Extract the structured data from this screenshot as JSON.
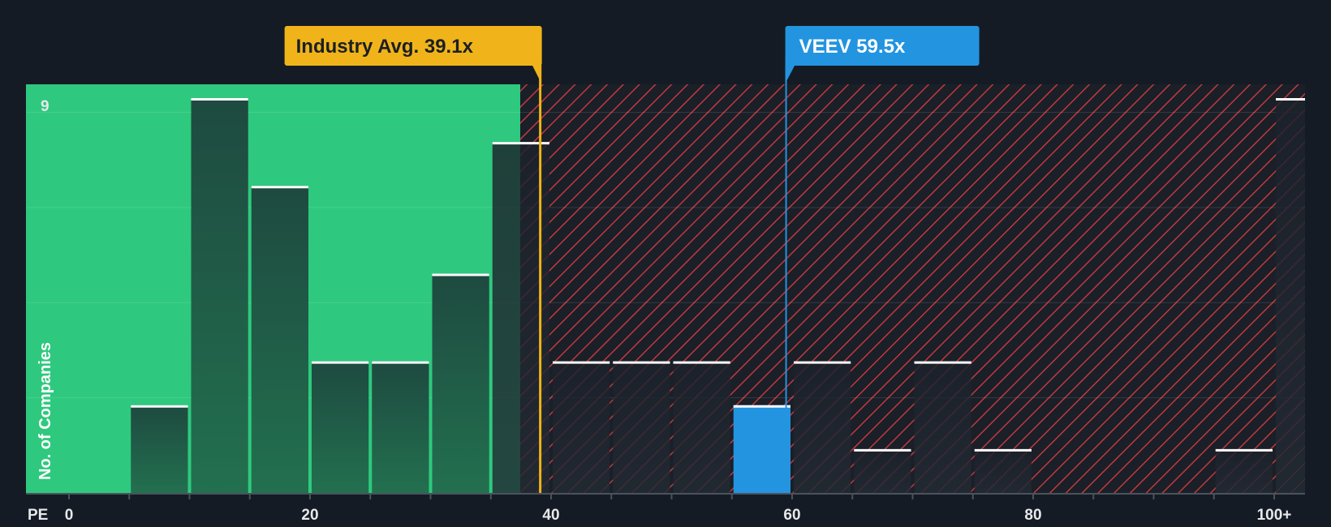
{
  "chart_data": {
    "type": "bar",
    "x_axis_prefix": "PE",
    "x_tick_labels": [
      "0",
      "20",
      "40",
      "60",
      "80",
      "100+"
    ],
    "x_ticks": [
      0,
      20,
      40,
      60,
      80,
      100
    ],
    "ylabel": "No. of Companies",
    "y_max_label": "9",
    "ylim": [
      0,
      9
    ],
    "bin_width": 5,
    "bins": [
      {
        "x0": 5,
        "value": 2
      },
      {
        "x0": 10,
        "value": 9
      },
      {
        "x0": 15,
        "value": 7
      },
      {
        "x0": 20,
        "value": 3
      },
      {
        "x0": 25,
        "value": 3
      },
      {
        "x0": 30,
        "value": 5
      },
      {
        "x0": 35,
        "value": 8
      },
      {
        "x0": 40,
        "value": 3
      },
      {
        "x0": 45,
        "value": 3
      },
      {
        "x0": 50,
        "value": 3
      },
      {
        "x0": 55,
        "value": 2,
        "highlight": true
      },
      {
        "x0": 60,
        "value": 3
      },
      {
        "x0": 65,
        "value": 1
      },
      {
        "x0": 70,
        "value": 3
      },
      {
        "x0": 75,
        "value": 1
      },
      {
        "x0": 95,
        "value": 1
      },
      {
        "x0": 100,
        "value": 9
      }
    ],
    "industry_avg": {
      "label": "Industry Avg. 39.1x",
      "value": 39.1
    },
    "company": {
      "label": "VEEV 59.5x",
      "value": 59.5
    },
    "colors": {
      "background": "#151b24",
      "green_zone": "#2ec97e",
      "bar_dark": "#1f4b40",
      "highlight": "#2394e0",
      "industry": "#f0b41a",
      "hatch": "#c0393e"
    }
  }
}
